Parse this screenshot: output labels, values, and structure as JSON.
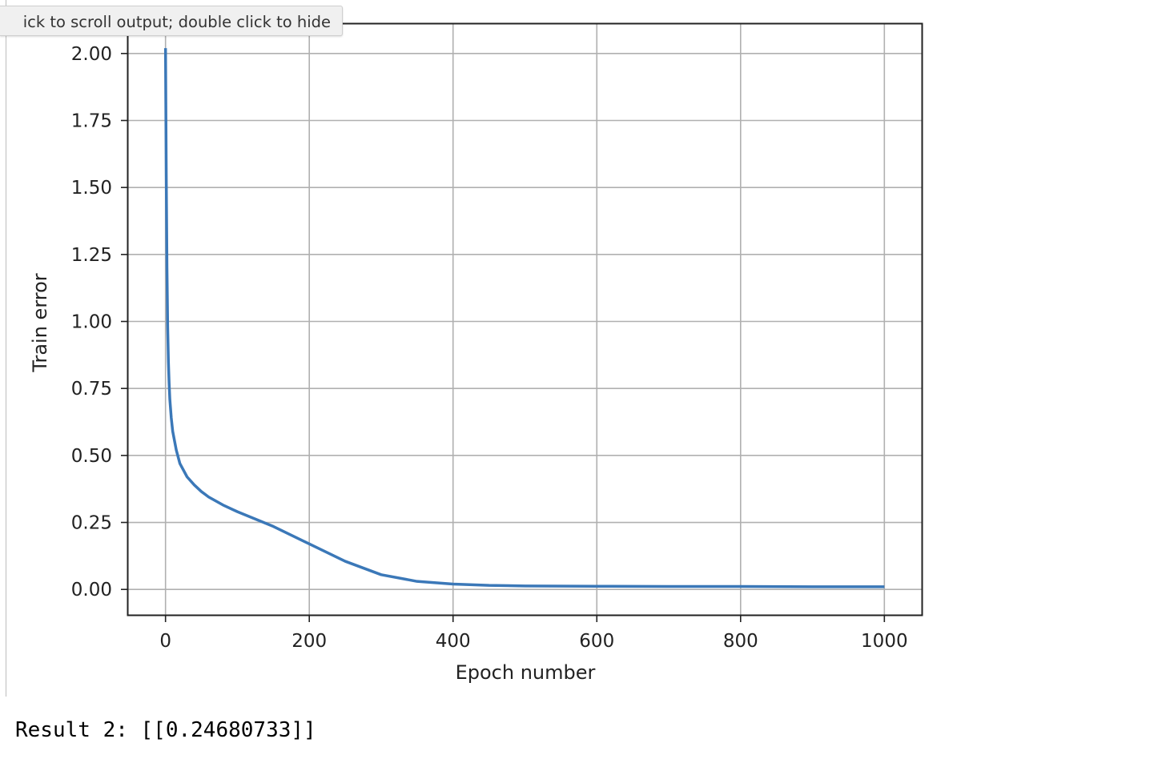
{
  "tooltip": {
    "text": "ick to scroll output; double click to hide"
  },
  "chart_data": {
    "type": "line",
    "title": "",
    "xlabel": "Epoch number",
    "ylabel": "Train error",
    "xlim": [
      -52,
      1052
    ],
    "ylim": [
      -0.095,
      2.11
    ],
    "xticks": [
      0,
      200,
      400,
      600,
      800,
      1000
    ],
    "xtick_labels": [
      "0",
      "200",
      "400",
      "600",
      "800",
      "1000"
    ],
    "yticks": [
      0.0,
      0.25,
      0.5,
      0.75,
      1.0,
      1.25,
      1.5,
      1.75,
      2.0
    ],
    "ytick_labels": [
      "0.00",
      "0.25",
      "0.50",
      "0.75",
      "1.00",
      "1.25",
      "1.50",
      "1.75",
      "2.00"
    ],
    "grid": true,
    "line_color": "#3b78b8",
    "series": [
      {
        "x": [
          0,
          1,
          2,
          3,
          4,
          5,
          6,
          8,
          10,
          15,
          20,
          30,
          40,
          50,
          60,
          80,
          100,
          150,
          200,
          250,
          300,
          350,
          400,
          450,
          500,
          600,
          700,
          800,
          900,
          1000
        ],
        "y": [
          2.02,
          1.55,
          1.2,
          0.98,
          0.85,
          0.77,
          0.71,
          0.64,
          0.59,
          0.52,
          0.47,
          0.42,
          0.39,
          0.365,
          0.345,
          0.315,
          0.29,
          0.235,
          0.17,
          0.105,
          0.055,
          0.03,
          0.02,
          0.015,
          0.013,
          0.012,
          0.011,
          0.011,
          0.01,
          0.01
        ]
      }
    ]
  },
  "result": {
    "text": "Result 2: [[0.24680733]]"
  }
}
